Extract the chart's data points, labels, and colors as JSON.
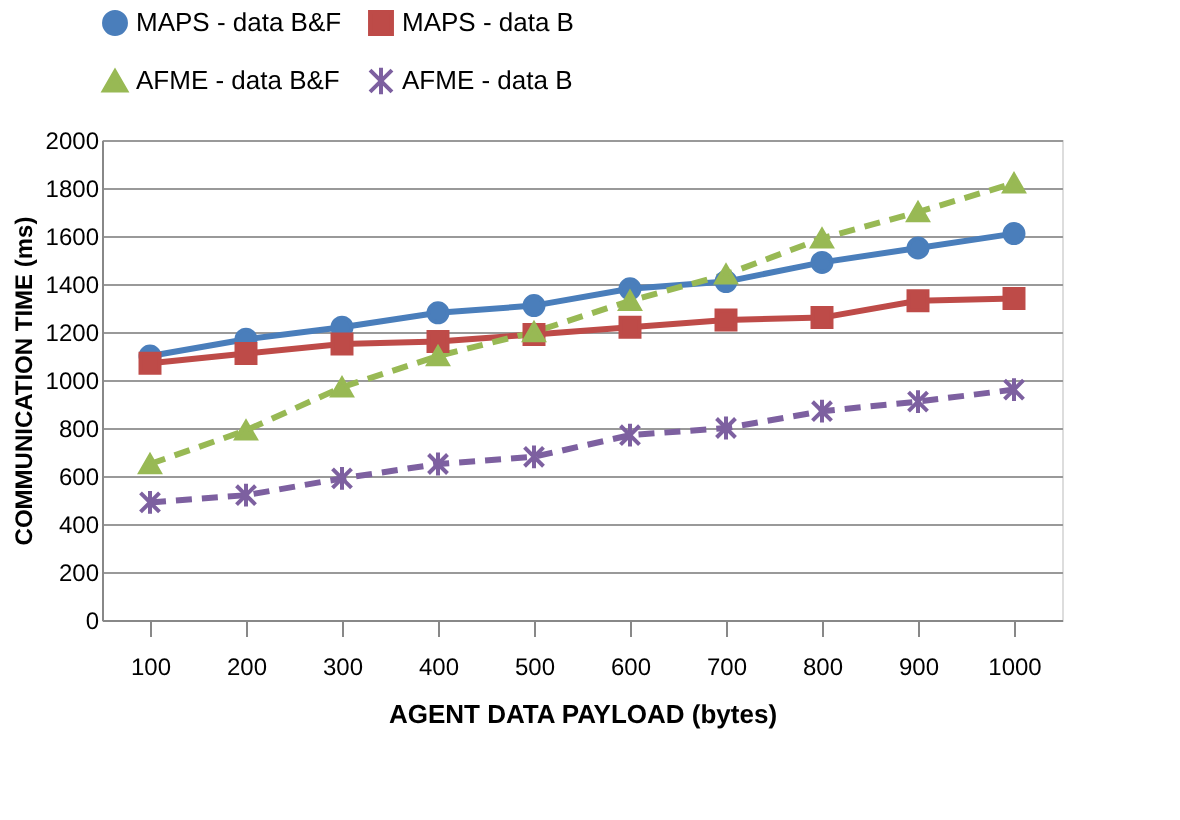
{
  "chart_data": {
    "type": "line",
    "xlabel": "AGENT DATA PAYLOAD (bytes)",
    "ylabel": "COMMUNICATION TIME (ms)",
    "categories": [
      "100",
      "200",
      "300",
      "400",
      "500",
      "600",
      "700",
      "800",
      "900",
      "1000"
    ],
    "series": [
      {
        "name": "MAPS - data B&F",
        "color": "#4a7ebb",
        "marker": "circle",
        "line_style": "solid",
        "values": [
          1100,
          1170,
          1220,
          1280,
          1310,
          1380,
          1410,
          1490,
          1550,
          1610
        ]
      },
      {
        "name": "MAPS - data B",
        "color": "#be4b48",
        "marker": "square",
        "line_style": "solid",
        "values": [
          1070,
          1110,
          1150,
          1160,
          1190,
          1220,
          1250,
          1260,
          1330,
          1340
        ]
      },
      {
        "name": "AFME - data B&F",
        "color": "#98b954",
        "marker": "triangle",
        "line_style": "dashed",
        "values": [
          650,
          790,
          970,
          1100,
          1200,
          1330,
          1440,
          1590,
          1700,
          1820
        ]
      },
      {
        "name": "AFME - data B",
        "color": "#7d60a0",
        "marker": "cross",
        "line_style": "dashed",
        "values": [
          490,
          520,
          590,
          650,
          680,
          770,
          800,
          870,
          910,
          960
        ]
      }
    ],
    "ylim": [
      0,
      2000
    ],
    "yticks": [
      0,
      200,
      400,
      600,
      800,
      1000,
      1200,
      1400,
      1600,
      1800,
      2000
    ],
    "grid": "y",
    "legend": "top"
  }
}
